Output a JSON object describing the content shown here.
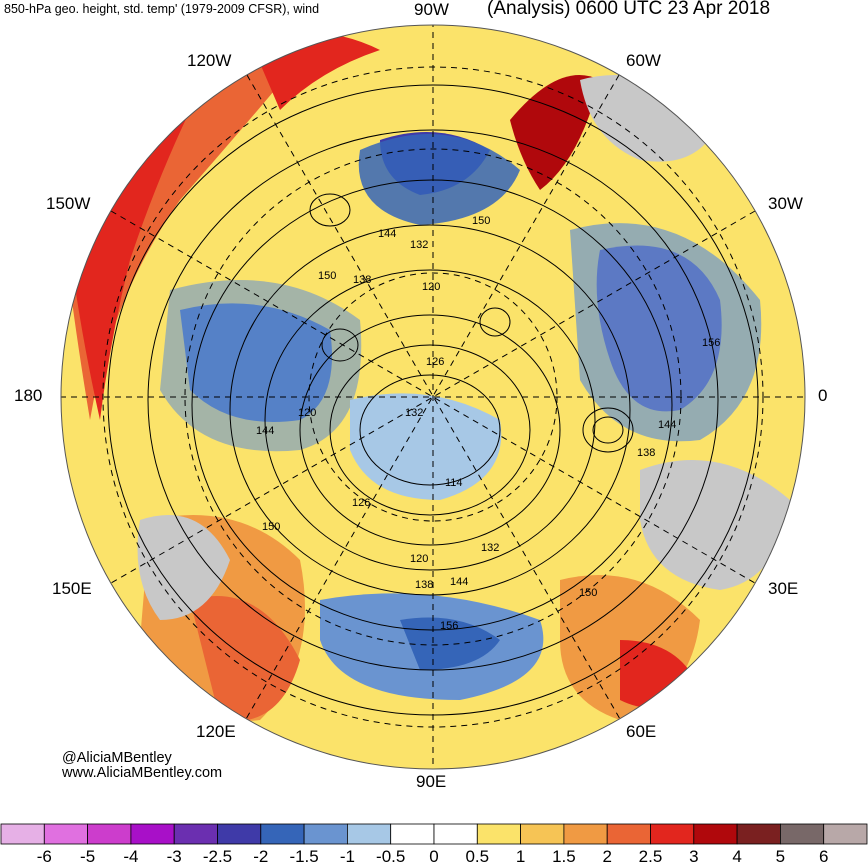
{
  "header": {
    "left_title": "850-hPa geo. height, std. temp' (1979-2009 CFSR), wind",
    "right_title": "(Analysis) 0600 UTC 23 Apr 2018"
  },
  "longitude_labels": {
    "w90": "90W",
    "w60": "60W",
    "w30": "30W",
    "e0": "0",
    "e30": "30E",
    "e60": "60E",
    "e90": "90E",
    "e120": "120E",
    "e150": "150E",
    "d180": "180",
    "w150": "150W",
    "w120": "120W"
  },
  "contour_labels": [
    "150",
    "144",
    "132",
    "120",
    "138",
    "150",
    "156",
    "126",
    "132",
    "120",
    "144",
    "126",
    "114",
    "150",
    "120",
    "132",
    "138",
    "144",
    "150",
    "156",
    "138",
    "144",
    "150"
  ],
  "credit": {
    "handle": "@AliciaMBentley",
    "website": "www.AliciaMBentley.com"
  },
  "colorbar": {
    "ticks": [
      "-6",
      "-5",
      "-4",
      "-3",
      "-2.5",
      "-2",
      "-1.5",
      "-1",
      "-0.5",
      "0",
      "0.5",
      "1",
      "1.5",
      "2",
      "2.5",
      "3",
      "4",
      "5",
      "6"
    ],
    "colors": [
      "#e6b0e6",
      "#e070e0",
      "#cc3dcc",
      "#a810c8",
      "#6b2fb0",
      "#3f3aa8",
      "#3565b8",
      "#6a94d0",
      "#a7c8e6",
      "#ffffff",
      "#ffffff",
      "#fbe36a",
      "#f6c455",
      "#f09a43",
      "#ea6535",
      "#e2261e",
      "#b0080c",
      "#7a2020",
      "#786868",
      "#b8a8a8"
    ]
  },
  "colors": {
    "ocean_gray": "#c8c8c8",
    "cold_blue": "#3565b8",
    "warm_orange": "#f09a43",
    "contour": "#000000"
  }
}
